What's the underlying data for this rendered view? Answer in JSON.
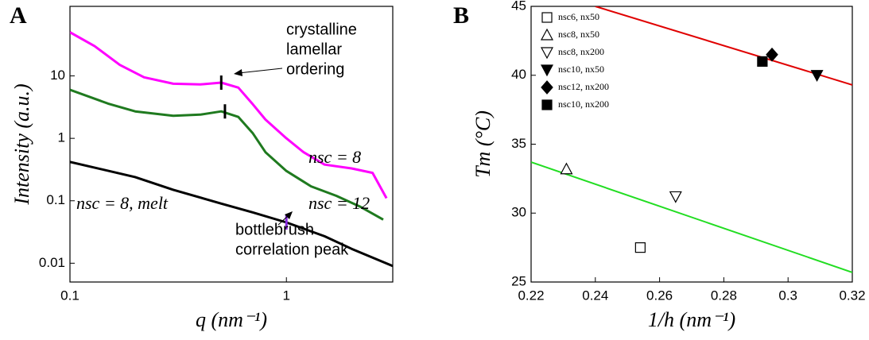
{
  "chart_data": [
    {
      "type": "line",
      "panel": "A",
      "x_label": "q (nm⁻¹)",
      "y_label": "Intensity (a.u.)",
      "log_x": true,
      "log_y": true,
      "xlim": [
        0.1,
        3.1
      ],
      "ylim": [
        0.005,
        130
      ],
      "xticks": [
        0.1,
        1
      ],
      "yticks": [
        0.01,
        0.1,
        1,
        10
      ],
      "series": [
        {
          "name": "nsc = 8",
          "color": "#ff00ff",
          "x": [
            0.1,
            0.13,
            0.17,
            0.22,
            0.3,
            0.4,
            0.5,
            0.6,
            0.7,
            0.8,
            1,
            1.2,
            1.5,
            2,
            2.5,
            2.9
          ],
          "values": [
            50,
            30,
            15,
            9.5,
            7.5,
            7.3,
            7.8,
            6.5,
            3.5,
            2,
            1,
            0.6,
            0.38,
            0.33,
            0.28,
            0.11
          ]
        },
        {
          "name": "nsc = 12",
          "color": "#1f7a1f",
          "x": [
            0.1,
            0.15,
            0.2,
            0.3,
            0.4,
            0.5,
            0.6,
            0.7,
            0.8,
            1,
            1.3,
            1.7,
            2.2,
            2.8
          ],
          "values": [
            6,
            3.6,
            2.7,
            2.3,
            2.4,
            2.7,
            2.2,
            1.2,
            0.6,
            0.3,
            0.17,
            0.12,
            0.08,
            0.05
          ]
        },
        {
          "name": "nsc = 8, melt",
          "color": "#000000",
          "x": [
            0.1,
            0.2,
            0.3,
            0.5,
            0.7,
            1,
            1.5,
            2,
            3.1
          ],
          "values": [
            0.42,
            0.24,
            0.15,
            0.09,
            0.065,
            0.045,
            0.027,
            0.017,
            0.009
          ]
        }
      ],
      "peak_marks": [
        {
          "x": 0.5,
          "y": 7.8,
          "color": "#000000"
        },
        {
          "x": 0.52,
          "y": 2.7,
          "color": "#000000"
        },
        {
          "x": 1,
          "y": 0.045,
          "color": "#8a2be2"
        }
      ],
      "annotations": [
        {
          "lines": [
            "crystalline",
            "lamellar",
            "ordering"
          ]
        },
        {
          "lines": [
            "bottlebrush",
            "correlation peak"
          ]
        }
      ]
    },
    {
      "type": "scatter",
      "panel": "B",
      "x_label": "1/h (nm⁻¹)",
      "y_label": "Tm (°C)",
      "log_x": false,
      "log_y": false,
      "xlim": [
        0.22,
        0.32
      ],
      "ylim": [
        25,
        45
      ],
      "xticks": [
        0.22,
        0.24,
        0.26,
        0.28,
        0.3,
        0.32
      ],
      "yticks": [
        25,
        30,
        35,
        40,
        45
      ],
      "legend": "upper-left",
      "series": [
        {
          "name": "nsc6, nx50",
          "marker": "square",
          "filled": false,
          "color": "#000000",
          "x": [
            0.254
          ],
          "values": [
            27.5
          ]
        },
        {
          "name": "nsc8, nx50",
          "marker": "triangle-up",
          "filled": false,
          "color": "#000000",
          "x": [
            0.231
          ],
          "values": [
            33.2
          ]
        },
        {
          "name": "nsc8, nx200",
          "marker": "triangle-down",
          "filled": false,
          "color": "#000000",
          "x": [
            0.265
          ],
          "values": [
            31.2
          ]
        },
        {
          "name": "nsc10, nx50",
          "marker": "triangle-down",
          "filled": true,
          "color": "#000000",
          "x": [
            0.309
          ],
          "values": [
            40
          ]
        },
        {
          "name": "nsc12, nx200",
          "marker": "diamond",
          "filled": true,
          "color": "#000000",
          "x": [
            0.295
          ],
          "values": [
            41.5
          ]
        },
        {
          "name": "nsc10, nx200",
          "marker": "square",
          "filled": true,
          "color": "#000000",
          "x": [
            0.292
          ],
          "values": [
            41
          ]
        }
      ],
      "fit_lines": [
        {
          "color": "#e00000",
          "x": [
            0.24,
            0.32
          ],
          "values": [
            45,
            39.3
          ]
        },
        {
          "color": "#22dd22",
          "x": [
            0.22,
            0.32
          ],
          "values": [
            33.7,
            25.7
          ]
        }
      ]
    }
  ]
}
